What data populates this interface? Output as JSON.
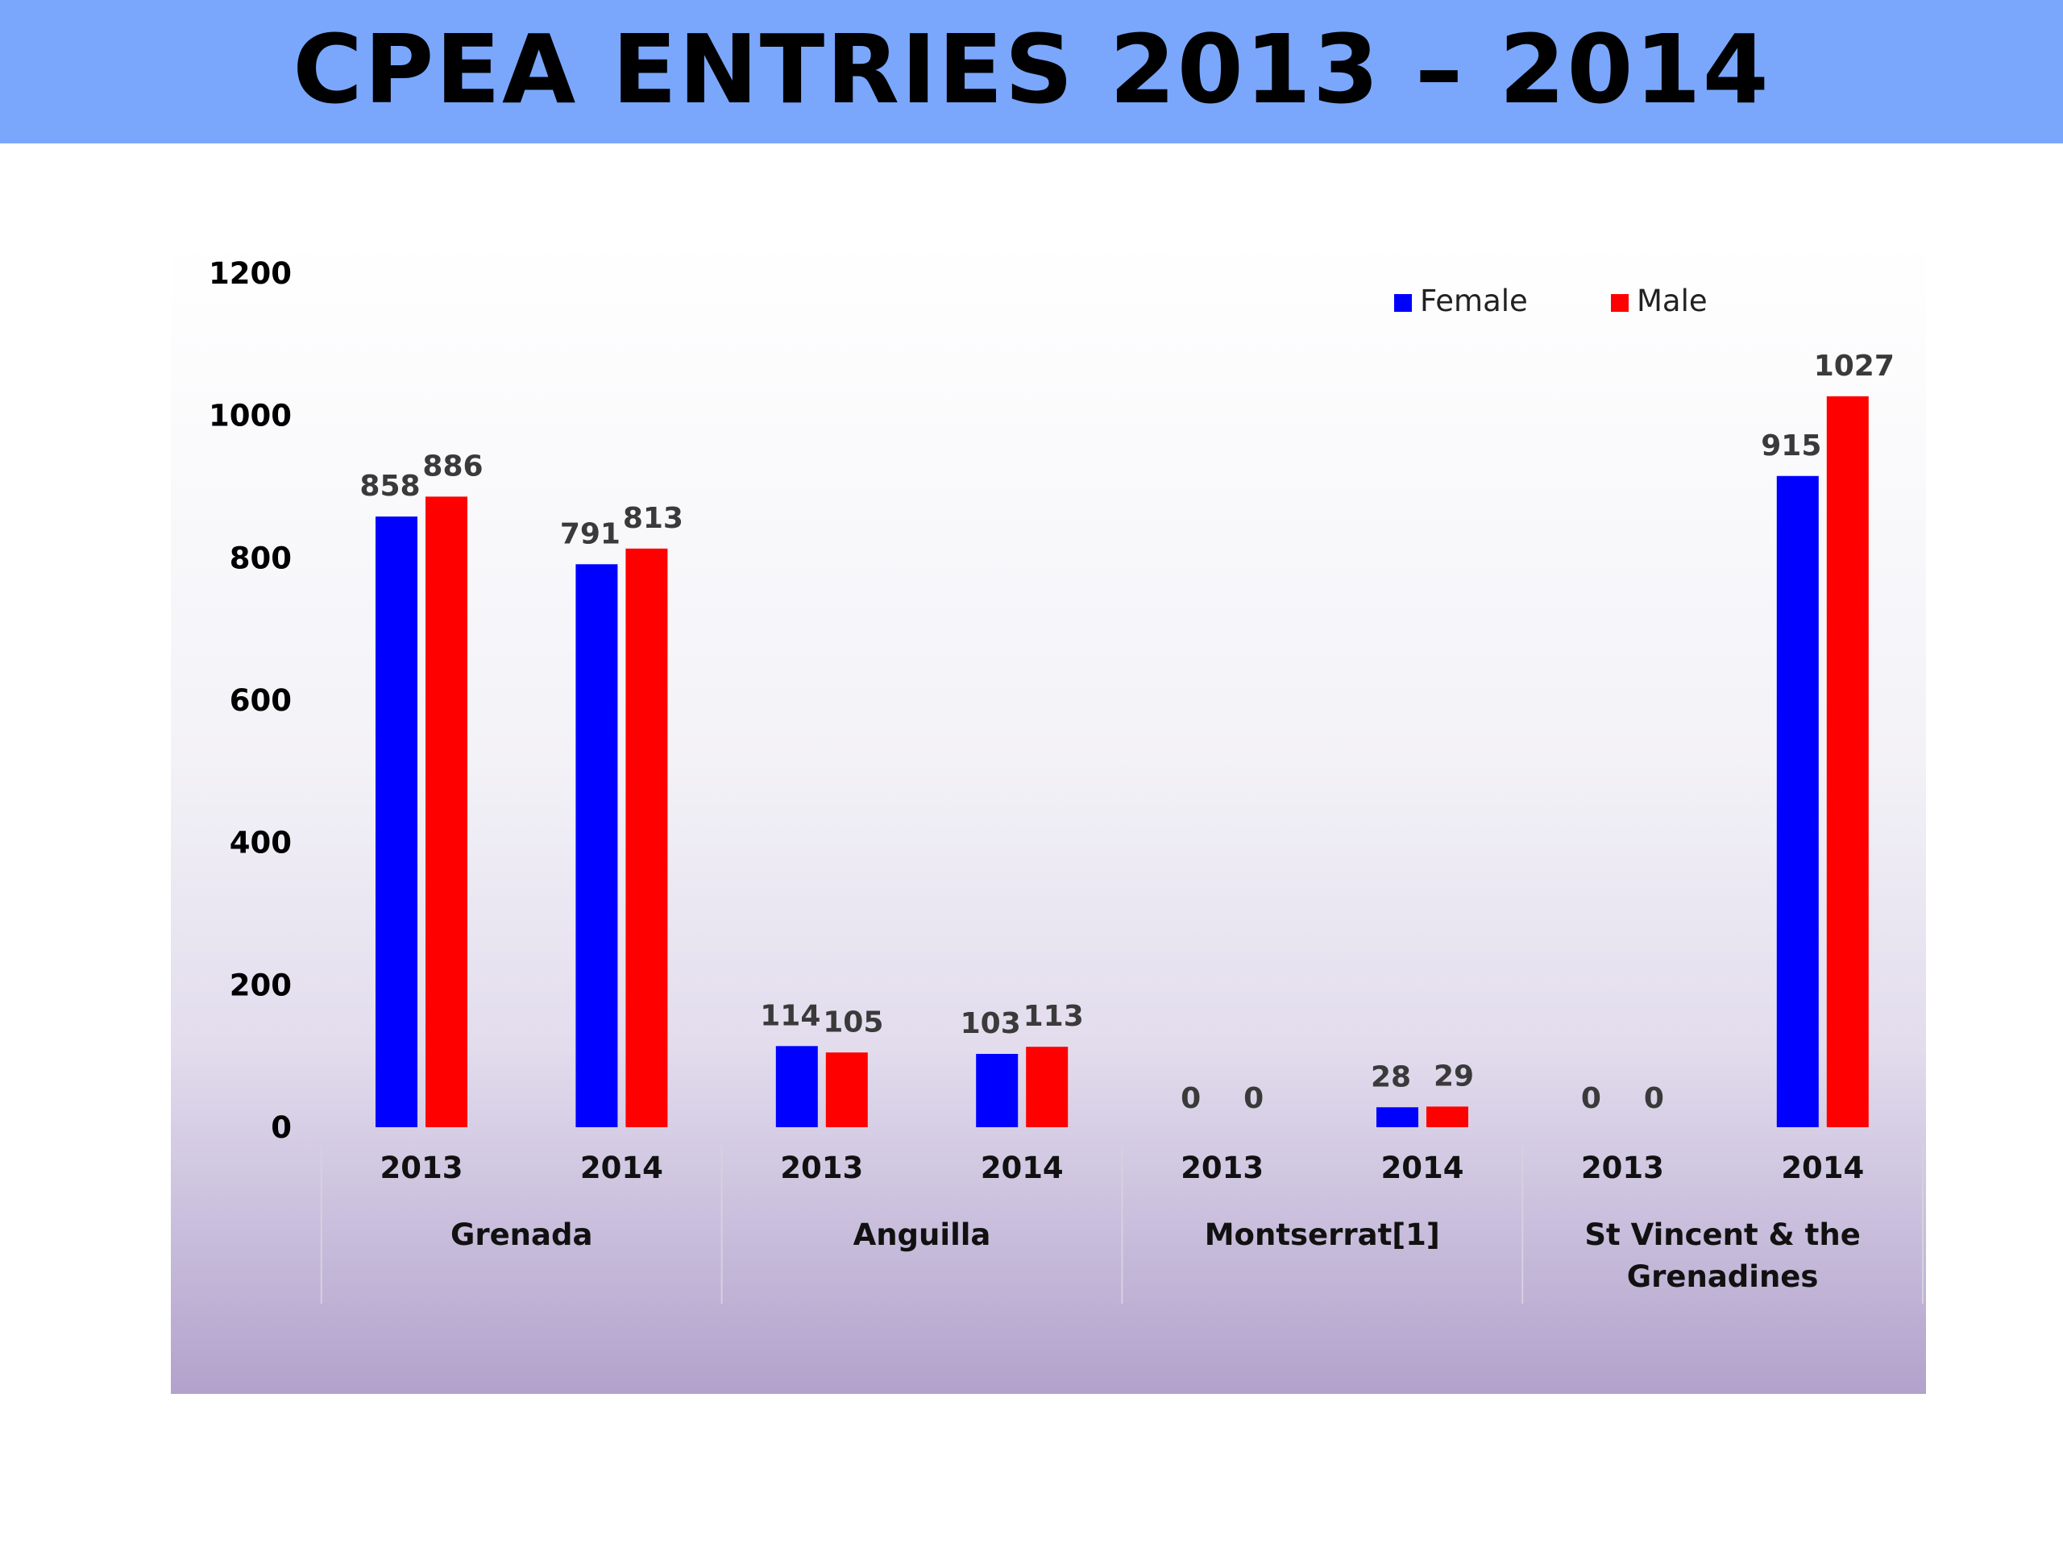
{
  "slide": {
    "title": "CPEA ENTRIES 2013 – 2014",
    "title_bar_color": "#7aa7fb"
  },
  "chart_data": {
    "type": "bar",
    "title": "",
    "xlabel": "",
    "ylabel": "",
    "ylim": [
      0,
      1200
    ],
    "yticks": [
      0,
      200,
      400,
      600,
      800,
      1000,
      1200
    ],
    "legend_position": "top-right",
    "grid": false,
    "groups": [
      "Grenada",
      "Anguilla",
      "Montserrat[1]",
      "St Vincent & the Grenadines"
    ],
    "categories": [
      "2013",
      "2014",
      "2013",
      "2014",
      "2013",
      "2014",
      "2013",
      "2014"
    ],
    "series": [
      {
        "name": "Female",
        "color": "#0000ff",
        "values": [
          858,
          791,
          114,
          103,
          0,
          28,
          0,
          915
        ]
      },
      {
        "name": "Male",
        "color": "#ff0000",
        "values": [
          886,
          813,
          105,
          113,
          0,
          29,
          0,
          1027
        ]
      }
    ]
  }
}
